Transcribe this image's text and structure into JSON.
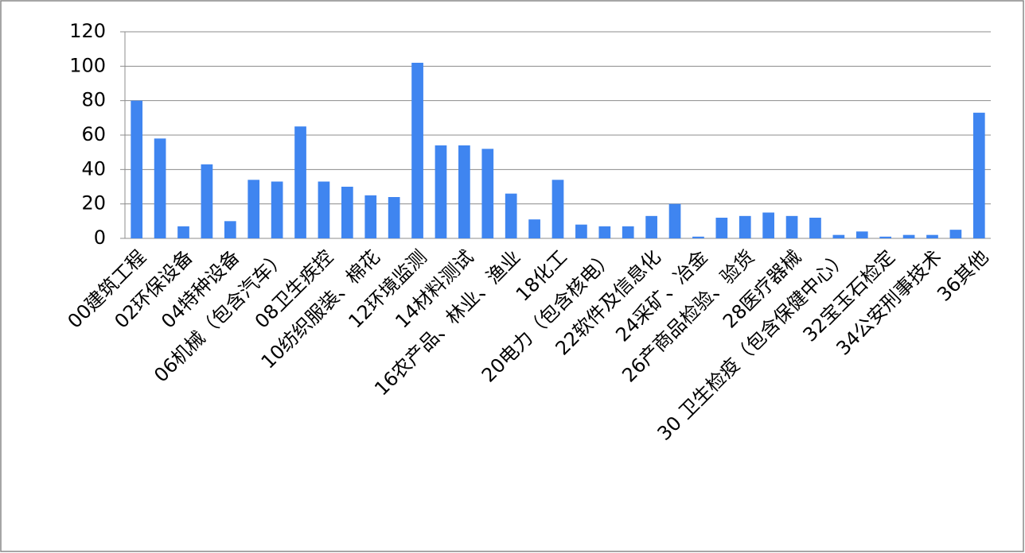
{
  "chart_data": {
    "type": "bar",
    "categories": [
      "00建筑工程",
      null,
      "02环保设备",
      null,
      "04特种设备",
      null,
      "06机械（包含汽车）",
      null,
      "08卫生疾控",
      null,
      "10纺织服装、棉花",
      null,
      "12环境监测",
      null,
      "14材料测试",
      null,
      "16农产品、林业、渔业",
      null,
      "18化工",
      null,
      "20电力（包含核电）",
      null,
      "22软件及信息化",
      null,
      "24采矿、冶金",
      null,
      "26产商品检验、验货",
      null,
      "28医疗器械",
      null,
      "30 卫生检疫（包含保健中心）",
      null,
      "32宝玉石检定",
      null,
      "34公安刑事技术",
      null,
      "36其他"
    ],
    "values": [
      80,
      58,
      7,
      43,
      10,
      34,
      33,
      65,
      33,
      30,
      25,
      24,
      102,
      54,
      54,
      52,
      26,
      11,
      34,
      8,
      7,
      7,
      13,
      20,
      1,
      12,
      13,
      15,
      13,
      12,
      2,
      4,
      1,
      2,
      2,
      5,
      73
    ],
    "color": "#3f85f0",
    "ylim": [
      0,
      120
    ],
    "yticks": [
      0,
      20,
      40,
      60,
      80,
      100,
      120
    ],
    "grid": true
  }
}
